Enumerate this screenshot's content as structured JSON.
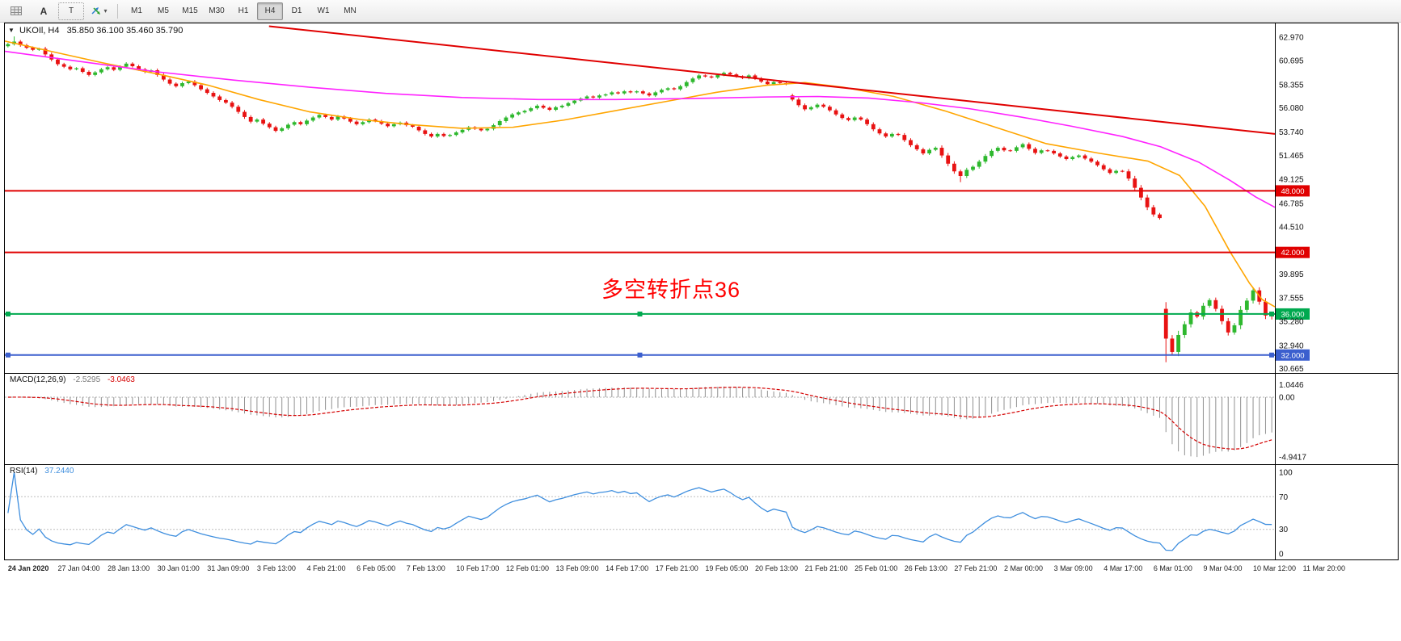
{
  "icons": {
    "collapse": "▼",
    "dropdown": "▾"
  },
  "toolbar": {
    "tool_a_label": "A",
    "tool_t_label": "T",
    "timeframes": [
      "M1",
      "M5",
      "M15",
      "M30",
      "H1",
      "H4",
      "D1",
      "W1",
      "MN"
    ],
    "active_timeframe": "H4"
  },
  "chart": {
    "symbol_label": "UKOIl, H4",
    "ohlc_values": "35.850 36.100 35.460 35.790",
    "annotation": {
      "text": "多空转折点36",
      "color": "#FF0000"
    }
  },
  "chart_data": {
    "type": "candlestick",
    "symbol": "UKOIl",
    "timeframe": "H4",
    "last_quote": {
      "open": 35.85,
      "high": 36.1,
      "low": 35.46,
      "close": 35.79
    },
    "candle_up_color": "#2EB82E",
    "candle_down_color": "#E81212",
    "price_axis": {
      "view_max": 64.4,
      "view_min": 30.25,
      "labels": [
        62.97,
        60.695,
        58.355,
        56.08,
        53.74,
        51.465,
        49.125,
        46.785,
        44.51,
        39.895,
        37.555,
        35.28,
        32.94,
        30.665
      ]
    },
    "first_open": 62.1,
    "closes": [
      62.3,
      62.55,
      62.2,
      61.95,
      61.75,
      61.85,
      61.3,
      60.8,
      60.35,
      60.1,
      59.85,
      59.95,
      59.6,
      59.3,
      59.55,
      59.85,
      60.05,
      59.8,
      60.1,
      60.4,
      60.15,
      59.85,
      59.6,
      59.75,
      59.3,
      58.85,
      58.45,
      58.2,
      58.5,
      58.65,
      58.3,
      57.9,
      57.55,
      57.2,
      56.85,
      56.6,
      56.2,
      55.7,
      55.2,
      54.75,
      54.95,
      54.55,
      54.2,
      53.85,
      54.1,
      54.45,
      54.7,
      54.5,
      54.85,
      55.15,
      55.4,
      55.2,
      54.95,
      55.25,
      55.05,
      54.75,
      54.5,
      54.7,
      54.95,
      54.8,
      54.55,
      54.3,
      54.5,
      54.65,
      54.4,
      54.25,
      53.9,
      53.55,
      53.3,
      53.55,
      53.35,
      53.45,
      53.7,
      53.95,
      54.2,
      54.05,
      53.9,
      54.05,
      54.4,
      54.8,
      55.15,
      55.45,
      55.65,
      55.8,
      56.05,
      56.3,
      56.1,
      55.9,
      56.15,
      56.3,
      56.55,
      56.8,
      57.0,
      57.2,
      57.1,
      57.3,
      57.4,
      57.6,
      57.5,
      57.7,
      57.6,
      57.7,
      57.5,
      57.3,
      57.6,
      57.85,
      58.0,
      57.9,
      58.2,
      58.6,
      58.95,
      59.25,
      59.15,
      59.05,
      59.3,
      59.5,
      59.35,
      59.15,
      59.0,
      59.25,
      58.95,
      58.65,
      58.4,
      58.6,
      58.5,
      58.4,
      56.9,
      56.35,
      55.95,
      56.15,
      56.4,
      56.2,
      55.85,
      55.45,
      55.1,
      54.9,
      55.15,
      54.95,
      54.5,
      54.0,
      53.6,
      53.3,
      53.55,
      53.45,
      52.95,
      52.45,
      52.05,
      51.65,
      52.0,
      52.2,
      51.45,
      50.65,
      49.9,
      49.45,
      50.05,
      50.35,
      50.85,
      51.4,
      51.9,
      52.2,
      51.95,
      51.9,
      52.25,
      52.55,
      52.1,
      51.7,
      51.95,
      51.9,
      51.65,
      51.35,
      51.1,
      51.3,
      51.45,
      51.15,
      50.85,
      50.5,
      50.1,
      49.75,
      49.95,
      49.9,
      49.2,
      48.3,
      47.35,
      46.4,
      45.7,
      45.35,
      33.6,
      32.3,
      33.95,
      35.0,
      36.15,
      35.75,
      36.8,
      37.35,
      36.5,
      35.3,
      34.2,
      34.9,
      36.4,
      37.3,
      38.3,
      37.2,
      35.85,
      35.79
    ],
    "opens_override": {
      "126": 57.3,
      "186": 36.5
    },
    "wick_overrides": {
      "1": {
        "h": 63.05
      },
      "153": {
        "l": 48.85
      },
      "186": {
        "l": 31.3
      },
      "200": {
        "h": 38.6
      },
      "203": {
        "h": 36.1,
        "l": 35.46
      }
    },
    "horizontal_lines": [
      {
        "price": 48.0,
        "color": "#E00000",
        "tag": "48.000",
        "handles": false
      },
      {
        "price": 42.0,
        "color": "#E00000",
        "tag": "42.000",
        "handles": false
      },
      {
        "price": 36.0,
        "color": "#00A94F",
        "tag": "36.000",
        "handles": true
      },
      {
        "price": 32.0,
        "color": "#3B5FCE",
        "tag": "32.000",
        "handles": true
      }
    ],
    "trendline": {
      "x1_frac": 0.208,
      "price1": 64.05,
      "x2_frac": 1.0,
      "price2": 53.55,
      "color": "#E00000"
    },
    "moving_averages": [
      {
        "name": "fast-ma",
        "color": "#FFA500",
        "points": [
          [
            0,
            62.6
          ],
          [
            0.04,
            61.5
          ],
          [
            0.08,
            60.4
          ],
          [
            0.12,
            59.4
          ],
          [
            0.16,
            58.3
          ],
          [
            0.2,
            56.9
          ],
          [
            0.24,
            55.7
          ],
          [
            0.28,
            54.95
          ],
          [
            0.32,
            54.45
          ],
          [
            0.36,
            54.1
          ],
          [
            0.4,
            54.2
          ],
          [
            0.44,
            54.9
          ],
          [
            0.48,
            55.8
          ],
          [
            0.52,
            56.7
          ],
          [
            0.56,
            57.6
          ],
          [
            0.6,
            58.3
          ],
          [
            0.63,
            58.55
          ],
          [
            0.66,
            58.1
          ],
          [
            0.7,
            57.2
          ],
          [
            0.74,
            55.8
          ],
          [
            0.78,
            54.2
          ],
          [
            0.82,
            52.6
          ],
          [
            0.86,
            51.7
          ],
          [
            0.9,
            50.9
          ],
          [
            0.925,
            49.5
          ],
          [
            0.945,
            46.5
          ],
          [
            0.965,
            42.0
          ],
          [
            0.98,
            39.0
          ],
          [
            0.99,
            37.4
          ],
          [
            1.0,
            36.7
          ]
        ]
      },
      {
        "name": "slow-ma",
        "color": "#FF22FF",
        "points": [
          [
            0,
            61.6
          ],
          [
            0.06,
            60.6
          ],
          [
            0.12,
            59.6
          ],
          [
            0.18,
            58.8
          ],
          [
            0.24,
            58.1
          ],
          [
            0.3,
            57.5
          ],
          [
            0.36,
            57.1
          ],
          [
            0.42,
            56.9
          ],
          [
            0.48,
            56.9
          ],
          [
            0.54,
            57.0
          ],
          [
            0.6,
            57.15
          ],
          [
            0.64,
            57.2
          ],
          [
            0.68,
            57.05
          ],
          [
            0.72,
            56.6
          ],
          [
            0.76,
            56.0
          ],
          [
            0.8,
            55.2
          ],
          [
            0.84,
            54.3
          ],
          [
            0.88,
            53.3
          ],
          [
            0.91,
            52.3
          ],
          [
            0.94,
            50.8
          ],
          [
            0.965,
            49.0
          ],
          [
            0.985,
            47.4
          ],
          [
            1.0,
            46.4
          ]
        ]
      }
    ],
    "indicators": {
      "macd": {
        "label": "MACD(12,26,9)",
        "value_main": "-2.5295",
        "value_signal": "-3.0463",
        "scale_labels": [
          "1.0446",
          "0.00",
          "-4.9417"
        ],
        "histogram_color": "#909090",
        "signal_color": "#D40000",
        "params": [
          12,
          26,
          9
        ]
      },
      "rsi": {
        "label": "RSI(14)",
        "value": "37.2440",
        "levels": [
          100,
          70,
          30,
          0
        ],
        "line_color": "#3E8EDE",
        "period": 14
      }
    },
    "time_axis": {
      "labels": [
        "24 Jan 2020",
        "27 Jan 04:00",
        "28 Jan 13:00",
        "30 Jan 01:00",
        "31 Jan 09:00",
        "3 Feb 13:00",
        "4 Feb 21:00",
        "6 Feb 05:00",
        "7 Feb 13:00",
        "10 Feb 17:00",
        "12 Feb 01:00",
        "13 Feb 09:00",
        "14 Feb 17:00",
        "17 Feb 21:00",
        "19 Feb 05:00",
        "20 Feb 13:00",
        "21 Feb 21:00",
        "25 Feb 01:00",
        "26 Feb 13:00",
        "27 Feb 21:00",
        "2 Mar 00:00",
        "3 Mar 09:00",
        "4 Mar 17:00",
        "6 Mar 01:00",
        "9 Mar 04:00",
        "10 Mar 12:00",
        "11 Mar 20:00"
      ]
    }
  }
}
